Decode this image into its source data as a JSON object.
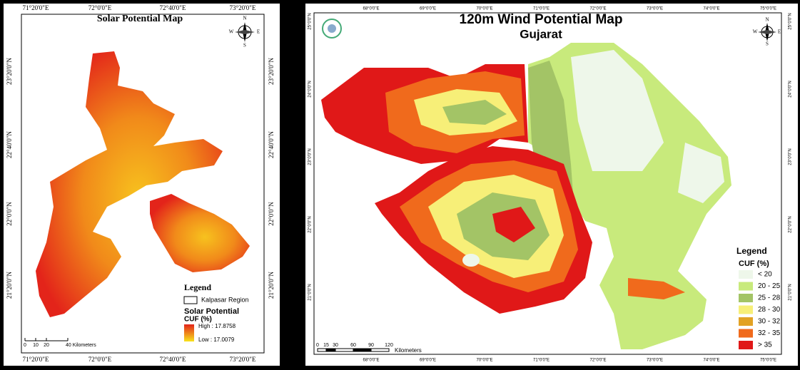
{
  "solar_map": {
    "title": "Solar Potential Map",
    "longitude_labels": [
      "71°20'0\"E",
      "72°0'0\"E",
      "72°40'0\"E",
      "73°20'0\"E"
    ],
    "latitude_labels": [
      "23°20'0\"N",
      "22°40'0\"N",
      "22°0'0\"N",
      "21°20'0\"N"
    ],
    "compass": {
      "n": "N",
      "e": "E",
      "s": "S",
      "w": "W"
    },
    "legend": {
      "title": "Legend",
      "region": "Kalpasar Region",
      "layer": "Solar Potential",
      "unit": "CUF (%)",
      "high": "High : 17.8758",
      "low": "Low : 17.0079"
    },
    "scale": {
      "ticks": [
        "0",
        "10",
        "20",
        "40 Kilometers"
      ]
    }
  },
  "wind_map": {
    "title": "120m Wind Potential Map",
    "subtitle": "Gujarat",
    "longitude_labels": [
      "68°0'0\"E",
      "69°0'0\"E",
      "70°0'0\"E",
      "71°0'0\"E",
      "72°0'0\"E",
      "73°0'0\"E",
      "74°0'0\"E",
      "75°0'0\"E"
    ],
    "latitude_labels": [
      "25°0'0\"N",
      "24°0'0\"N",
      "23°0'0\"N",
      "22°0'0\"N",
      "21°0'0\"N"
    ],
    "compass": {
      "n": "N",
      "e": "E",
      "s": "S",
      "w": "W"
    },
    "legend": {
      "title": "Legend",
      "unit": "CUF (%)",
      "classes": [
        {
          "label": "< 20",
          "color": "#eef7ea"
        },
        {
          "label": "20 - 25",
          "color": "#c8ea7c"
        },
        {
          "label": "25 - 28",
          "color": "#a3c466"
        },
        {
          "label": "28 - 30",
          "color": "#f7ef78"
        },
        {
          "label": "30 - 32",
          "color": "#e2a224"
        },
        {
          "label": "32 - 35",
          "color": "#f06a1c"
        },
        {
          "label": "> 35",
          "color": "#e01818"
        }
      ]
    },
    "scale": {
      "ticks": [
        "0",
        "15",
        "30",
        "60",
        "90",
        "120"
      ],
      "unit": "Kilometers"
    }
  }
}
